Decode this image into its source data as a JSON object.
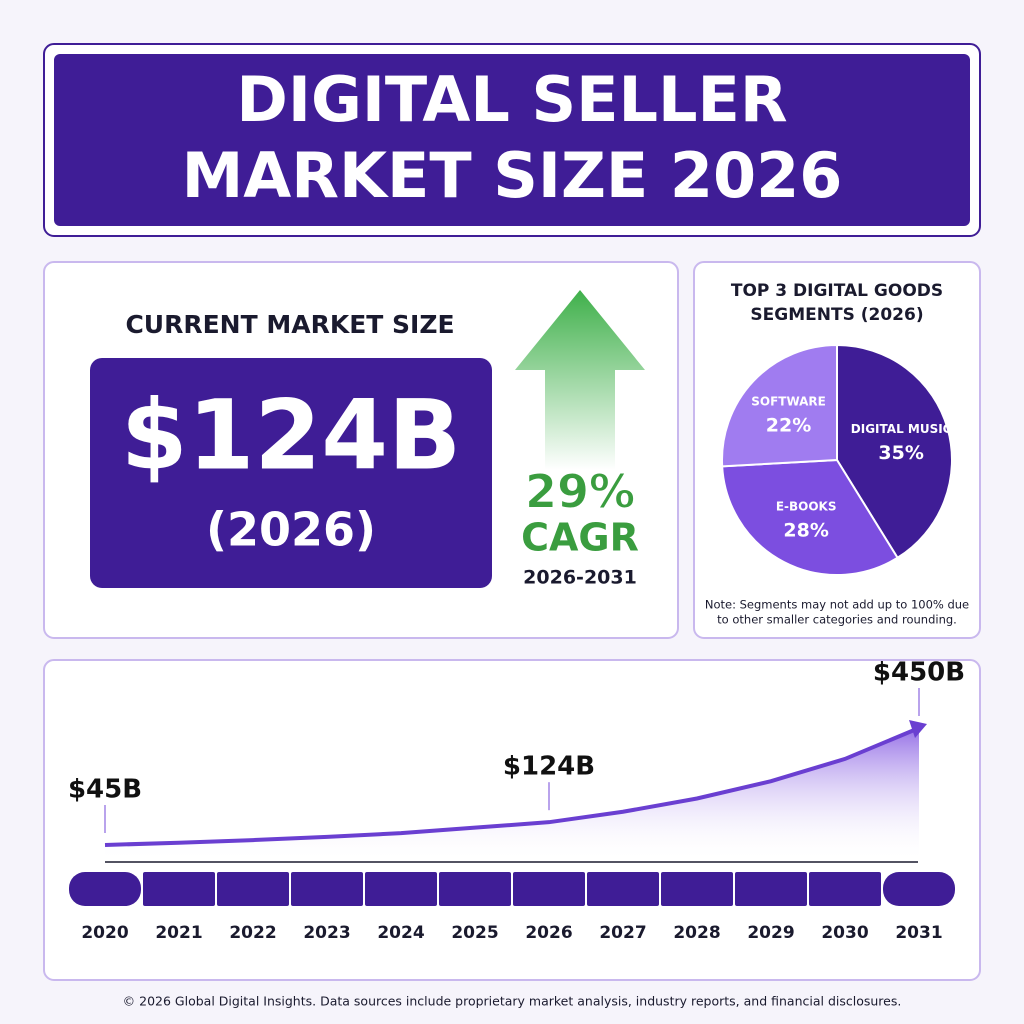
{
  "header": {
    "title_line1": "DIGITAL SELLER",
    "title_line2": "MARKET SIZE 2026"
  },
  "current": {
    "label": "CURRENT MARKET SIZE",
    "value": "$124B",
    "year": "(2026)",
    "growth": "29%",
    "growth_label": "CAGR",
    "period": "2026-2031"
  },
  "chart_data": [
    {
      "type": "pie",
      "title_line1": "TOP 3 DIGITAL GOODS",
      "title_line2": "SEGMENTS (2026)",
      "categories": [
        "DIGITAL MUSIC",
        "E-BOOKS",
        "SOFTWARE"
      ],
      "values": [
        35,
        28,
        22
      ],
      "value_labels": [
        "35%",
        "28%",
        "22%"
      ],
      "colors": [
        "#3f1d96",
        "#7c4ee0",
        "#a07cf0"
      ],
      "note_line1": "Note: Segments may not add up to 100% due",
      "note_line2": "to other smaller categories and rounding."
    },
    {
      "type": "line",
      "categories": [
        "2020",
        "2021",
        "2022",
        "2023",
        "2024",
        "2025",
        "2026",
        "2027",
        "2028",
        "2029",
        "2030",
        "2031"
      ],
      "values": [
        45,
        53,
        62,
        73,
        86,
        105,
        124,
        160,
        206,
        266,
        343,
        450
      ],
      "value_labels": [
        "$45B",
        null,
        null,
        null,
        null,
        null,
        "$124B",
        null,
        null,
        null,
        null,
        "$450B"
      ],
      "color": "#6a3fd1"
    }
  ],
  "footer": "© 2026 Global Digital Insights. Data sources include proprietary market analysis, industry reports, and financial disclosures."
}
